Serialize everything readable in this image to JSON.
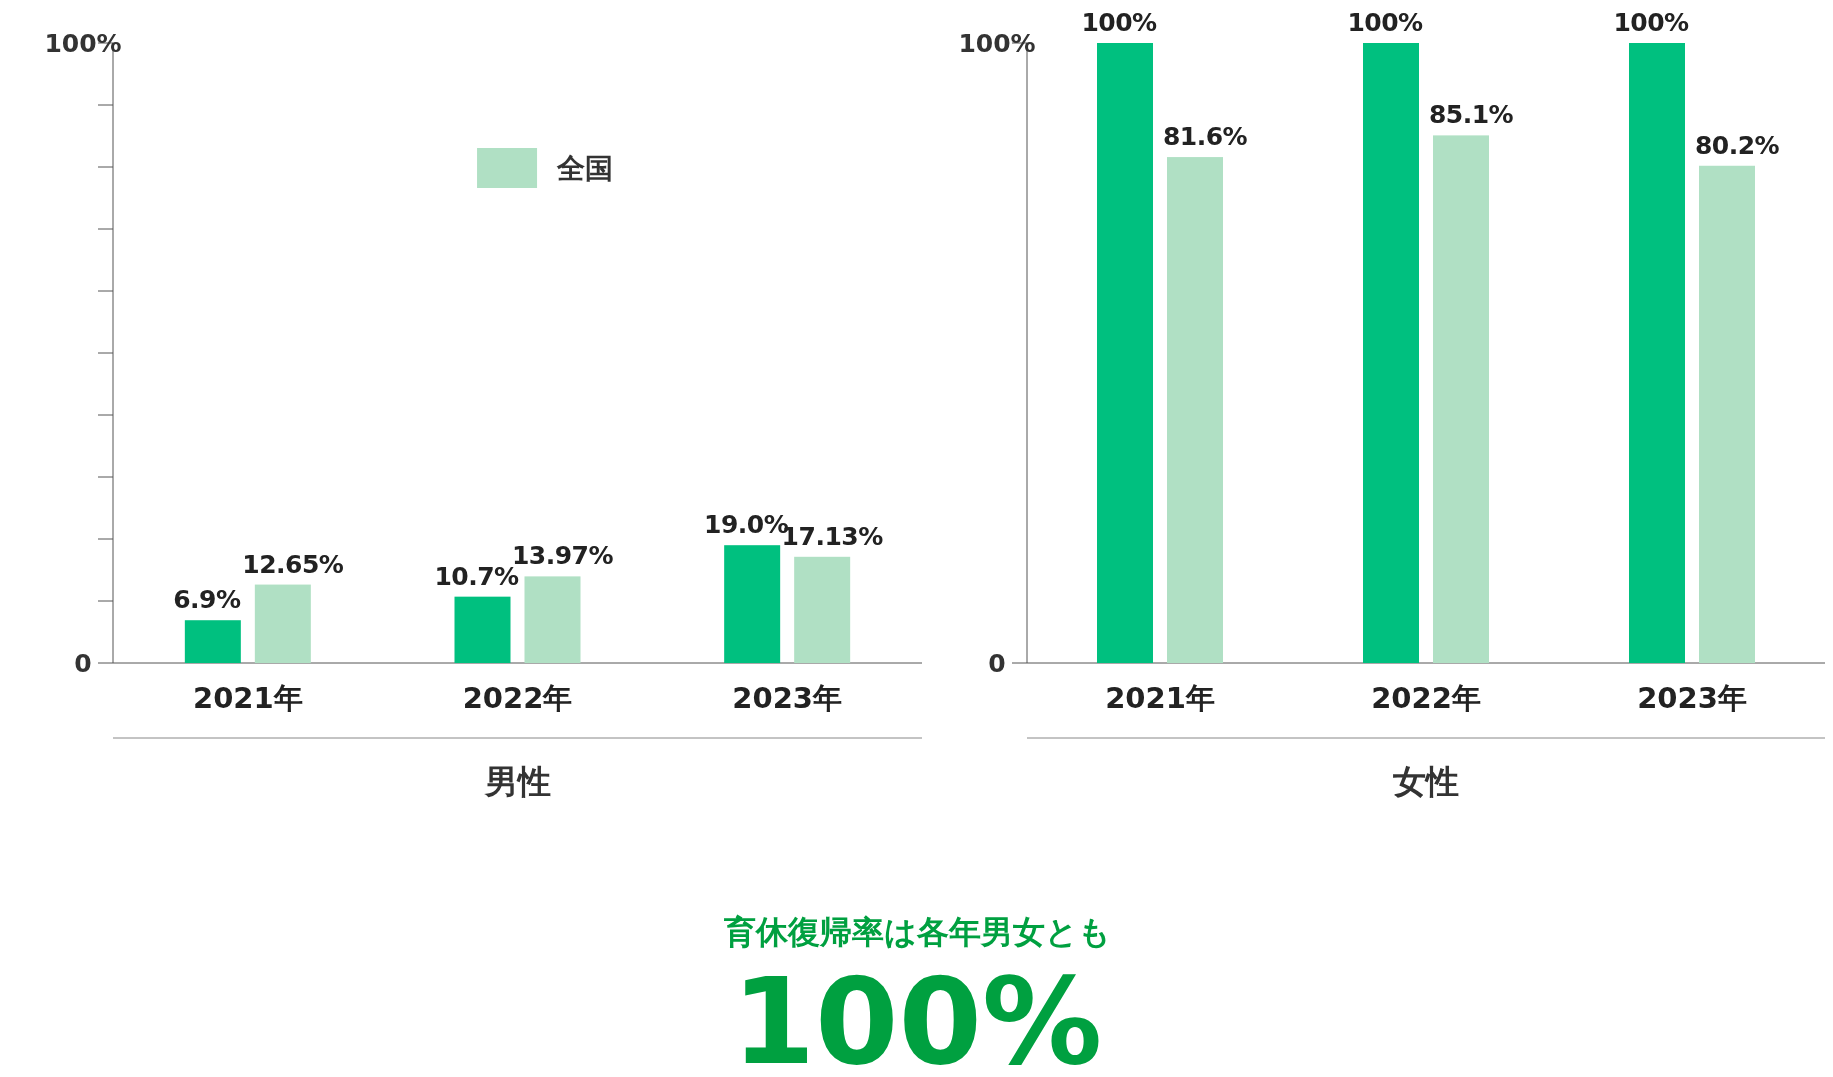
{
  "chart_data": [
    {
      "type": "bar",
      "categories": [
        "2021年",
        "2022年",
        "2023年"
      ],
      "xlabel": "男性",
      "ylim": [
        0,
        100
      ],
      "yticks": [
        0,
        {
          "value": 10,
          "label": null
        },
        {
          "value": 20,
          "label": null
        },
        {
          "value": 30,
          "label": null
        },
        {
          "value": 40,
          "label": null
        },
        {
          "value": 50,
          "label": null
        },
        {
          "value": 60,
          "label": null
        },
        {
          "value": 70,
          "label": null
        },
        {
          "value": 80,
          "label": null
        },
        {
          "value": 90,
          "label": null
        },
        {
          "value": 100,
          "label": "100%"
        }
      ],
      "legend": "top right",
      "grid": false,
      "series": [
        {
          "color": "#00c07f",
          "values": [
            6.9,
            10.7,
            19.0
          ],
          "value_labels": [
            "6.9%",
            "10.7%",
            "19.0%"
          ]
        },
        {
          "name": "全国",
          "color": "#b0e0c4",
          "values": [
            12.65,
            13.97,
            17.13
          ],
          "value_labels": [
            "12.65%",
            "13.97%",
            "17.13%"
          ]
        }
      ]
    },
    {
      "type": "bar",
      "categories": [
        "2021年",
        "2022年",
        "2023年"
      ],
      "xlabel": "女性",
      "ylim": [
        0,
        100
      ],
      "yticks": [
        0,
        {
          "value": 100,
          "label": "100%"
        }
      ],
      "grid": false,
      "series": [
        {
          "color": "#00c07f",
          "values": [
            100,
            100,
            100
          ],
          "value_labels": [
            "100%",
            "100%",
            "100%"
          ]
        },
        {
          "color": "#b0e0c4",
          "values": [
            81.6,
            85.1,
            80.2
          ],
          "value_labels": [
            "81.6%",
            "85.1%",
            "80.2%"
          ]
        }
      ]
    },
    {
      "type": "other",
      "annotations": [
        "育休復帰率は各年男女とも",
        "100%"
      ]
    }
  ]
}
